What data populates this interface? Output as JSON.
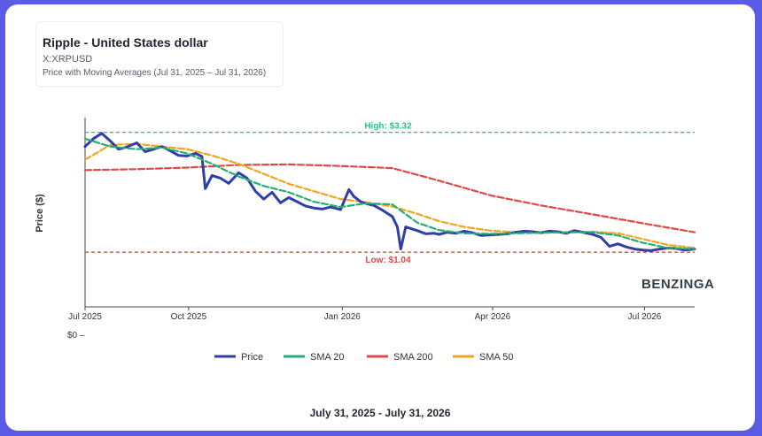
{
  "header": {
    "title": "Ripple - United States dollar",
    "ticker": "X:XRPUSD",
    "subtitle": "Price with Moving Averages (Jul 31, 2025 – Jul 31, 2026)"
  },
  "footer": {
    "date_range": "July 31, 2025 - July 31, 2026"
  },
  "watermark": "BENZINGA",
  "colors": {
    "price": "#2f3fa6",
    "sma20": "#27ae74",
    "sma200": "#e04848",
    "sma50": "#f0a520",
    "high_line": "#2fbf8a",
    "low_line": "#e04848"
  },
  "chart_data": {
    "type": "line",
    "ylabel": "Price ($)",
    "xlabel": "",
    "x_ticks": [
      "Jul 2025",
      "Oct 2025",
      "Jan 2026",
      "Apr 2026",
      "Jul 2026"
    ],
    "x_tick_dates": [
      "2025-07-31",
      "2025-10-01",
      "2026-01-01",
      "2026-04-01",
      "2026-07-01"
    ],
    "y_tick_label": "$0",
    "ylim": [
      0,
      3.6
    ],
    "grid": false,
    "legend_position": "bottom",
    "reference_lines": [
      {
        "label": "High: $3.32",
        "value": 3.32,
        "style": "dashed"
      },
      {
        "label": "Low: $1.04",
        "value": 1.04,
        "style": "dashed"
      }
    ],
    "series": [
      {
        "name": "Price",
        "dates": [
          "2025-07-31",
          "2025-08-05",
          "2025-08-10",
          "2025-08-15",
          "2025-08-20",
          "2025-08-25",
          "2025-08-31",
          "2025-09-05",
          "2025-09-10",
          "2025-09-15",
          "2025-09-20",
          "2025-09-25",
          "2025-09-30",
          "2025-10-05",
          "2025-10-09",
          "2025-10-11",
          "2025-10-15",
          "2025-10-20",
          "2025-10-25",
          "2025-10-31",
          "2025-11-05",
          "2025-11-10",
          "2025-11-15",
          "2025-11-20",
          "2025-11-25",
          "2025-11-30",
          "2025-12-05",
          "2025-12-10",
          "2025-12-15",
          "2025-12-20",
          "2025-12-25",
          "2025-12-31",
          "2026-01-05",
          "2026-01-08",
          "2026-01-12",
          "2026-01-16",
          "2026-01-20",
          "2026-01-25",
          "2026-01-31",
          "2026-02-03",
          "2026-02-05",
          "2026-02-08",
          "2026-02-15",
          "2026-02-20",
          "2026-02-25",
          "2026-02-28",
          "2026-03-05",
          "2026-03-10",
          "2026-03-15",
          "2026-03-20",
          "2026-03-25",
          "2026-03-31",
          "2026-04-05",
          "2026-04-10",
          "2026-04-15",
          "2026-04-20",
          "2026-04-25",
          "2026-04-30",
          "2026-05-05",
          "2026-05-10",
          "2026-05-15",
          "2026-05-20",
          "2026-05-25",
          "2026-05-31",
          "2026-06-05",
          "2026-06-10",
          "2026-06-15",
          "2026-06-20",
          "2026-06-25",
          "2026-06-30",
          "2026-07-05",
          "2026-07-10",
          "2026-07-15",
          "2026-07-20",
          "2026-07-25",
          "2026-07-31"
        ],
        "values": [
          3.05,
          3.2,
          3.3,
          3.16,
          3.0,
          3.04,
          3.12,
          2.95,
          3.0,
          3.05,
          2.97,
          2.88,
          2.87,
          2.92,
          2.86,
          2.25,
          2.5,
          2.45,
          2.35,
          2.55,
          2.45,
          2.2,
          2.05,
          2.18,
          1.98,
          2.08,
          2.0,
          1.92,
          1.88,
          1.86,
          1.9,
          1.85,
          2.23,
          2.1,
          2.0,
          1.96,
          1.93,
          1.84,
          1.72,
          1.52,
          1.1,
          1.52,
          1.45,
          1.39,
          1.4,
          1.38,
          1.42,
          1.4,
          1.44,
          1.41,
          1.36,
          1.37,
          1.38,
          1.39,
          1.42,
          1.44,
          1.43,
          1.41,
          1.44,
          1.43,
          1.4,
          1.45,
          1.42,
          1.38,
          1.32,
          1.15,
          1.2,
          1.14,
          1.1,
          1.08,
          1.07,
          1.1,
          1.12,
          1.11,
          1.08,
          1.1
        ]
      },
      {
        "name": "SMA 20",
        "dates": [
          "2025-07-31",
          "2025-08-15",
          "2025-08-31",
          "2025-09-15",
          "2025-09-30",
          "2025-10-15",
          "2025-10-31",
          "2025-11-15",
          "2025-11-30",
          "2025-12-15",
          "2025-12-31",
          "2026-01-15",
          "2026-01-31",
          "2026-02-15",
          "2026-02-28",
          "2026-03-15",
          "2026-03-31",
          "2026-04-15",
          "2026-04-30",
          "2026-05-15",
          "2026-05-31",
          "2026-06-15",
          "2026-06-30",
          "2026-07-15",
          "2026-07-31"
        ],
        "values": [
          3.2,
          3.05,
          3.0,
          3.03,
          2.92,
          2.72,
          2.48,
          2.3,
          2.18,
          2.0,
          1.9,
          1.97,
          1.95,
          1.6,
          1.46,
          1.4,
          1.39,
          1.4,
          1.41,
          1.42,
          1.42,
          1.36,
          1.22,
          1.12,
          1.1
        ]
      },
      {
        "name": "SMA 200",
        "dates": [
          "2025-07-31",
          "2025-08-31",
          "2025-09-30",
          "2025-10-31",
          "2025-11-30",
          "2025-12-31",
          "2026-01-31",
          "2026-02-28",
          "2026-03-31",
          "2026-04-30",
          "2026-05-31",
          "2026-06-30",
          "2026-07-31"
        ],
        "values": [
          2.6,
          2.62,
          2.65,
          2.7,
          2.71,
          2.68,
          2.64,
          2.4,
          2.12,
          1.93,
          1.76,
          1.59,
          1.42
        ]
      },
      {
        "name": "SMA 50",
        "dates": [
          "2025-07-31",
          "2025-08-15",
          "2025-08-31",
          "2025-09-15",
          "2025-09-30",
          "2025-10-15",
          "2025-10-31",
          "2025-11-15",
          "2025-11-30",
          "2025-12-15",
          "2025-12-31",
          "2026-01-15",
          "2026-01-31",
          "2026-02-15",
          "2026-02-28",
          "2026-03-15",
          "2026-03-31",
          "2026-04-15",
          "2026-04-30",
          "2026-05-15",
          "2026-05-31",
          "2026-06-15",
          "2026-06-30",
          "2026-07-15",
          "2026-07-31"
        ],
        "values": [
          2.8,
          3.08,
          3.1,
          3.05,
          3.0,
          2.88,
          2.72,
          2.53,
          2.34,
          2.2,
          2.05,
          1.99,
          1.91,
          1.77,
          1.63,
          1.52,
          1.45,
          1.42,
          1.41,
          1.42,
          1.43,
          1.4,
          1.29,
          1.18,
          1.12
        ]
      }
    ]
  }
}
